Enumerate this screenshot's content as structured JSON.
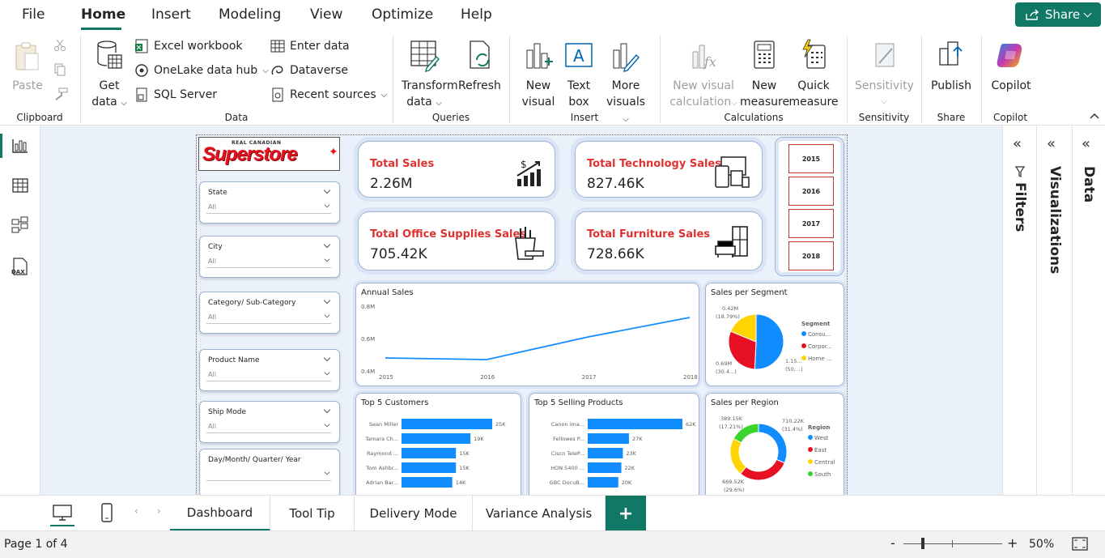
{
  "menu": {
    "items": [
      "File",
      "Home",
      "Insert",
      "Modeling",
      "View",
      "Optimize",
      "Help"
    ],
    "share_label": "Share"
  },
  "ribbon": {
    "clipboard": {
      "paste": "Paste",
      "group": "Clipboard"
    },
    "data": {
      "get_data_1": "Get",
      "get_data_2": "data",
      "excel": "Excel workbook",
      "onelake": "OneLake data hub",
      "sql": "SQL Server",
      "enter": "Enter data",
      "dataverse": "Dataverse",
      "recent": "Recent sources",
      "group": "Data"
    },
    "queries": {
      "transform_1": "Transform",
      "transform_2": "data",
      "refresh": "Refresh",
      "group": "Queries"
    },
    "insert": {
      "new_visual_1": "New",
      "new_visual_2": "visual",
      "text_box_1": "Text",
      "text_box_2": "box",
      "more_visuals_1": "More",
      "more_visuals_2": "visuals",
      "group": "Insert"
    },
    "calculations": {
      "new_visual_calc_1": "New visual",
      "new_visual_calc_2": "calculation",
      "new_measure_1": "New",
      "new_measure_2": "measure",
      "quick_measure_1": "Quick",
      "quick_measure_2": "measure",
      "group": "Calculations"
    },
    "sensitivity": {
      "label": "Sensitivity",
      "group": "Sensitivity"
    },
    "share": {
      "publish": "Publish",
      "group": "Share"
    },
    "copilot": {
      "label": "Copilot",
      "group": "Copilot"
    }
  },
  "panes": {
    "filters": "Filters",
    "visualizations": "Visualizations",
    "data": "Data"
  },
  "report": {
    "logo_top": "REAL CANADIAN",
    "logo": "Superstore",
    "slicers": [
      {
        "label": "State",
        "value": "All"
      },
      {
        "label": "City",
        "value": "All"
      },
      {
        "label": "Category/ Sub-Category",
        "value": "All"
      },
      {
        "label": "Product Name",
        "value": "All"
      },
      {
        "label": "Ship Mode",
        "value": "All"
      },
      {
        "label": "Day/Month/ Quarter/ Year",
        "value": ""
      }
    ],
    "kpis": [
      {
        "title": "Total Sales",
        "value": "2.26M"
      },
      {
        "title": "Total Technology Sales",
        "value": "827.46K"
      },
      {
        "title": "Total Office Supplies Sales",
        "value": "705.42K"
      },
      {
        "title": "Total Furniture Sales",
        "value": "728.66K"
      }
    ],
    "years": [
      "2015",
      "2016",
      "2017",
      "2018"
    ],
    "annual_title": "Annual Sales",
    "segment_title": "Sales per Segment",
    "segment_legend_title": "Segment",
    "segment_labels": [
      "0.42M",
      "(18.79%)",
      "0.69M",
      "(30.4...)",
      "1.15...",
      "(50,...)"
    ],
    "customers_title": "Top 5 Customers",
    "products_title": "Top 5 Selling Products",
    "region_title": "Sales per Region",
    "region_legend_title": "Region",
    "region_labels": [
      "389.15K",
      "(17.21%)",
      "710.22K",
      "(31.4%)",
      "669.52K",
      "(29.6%)"
    ]
  },
  "chart_data": [
    {
      "type": "line",
      "title": "Annual Sales",
      "x": [
        "2015",
        "2016",
        "2017",
        "2018"
      ],
      "values": [
        0.48,
        0.47,
        0.61,
        0.73
      ],
      "ytick_labels": [
        "0.8M",
        "0.6M",
        "0.4M"
      ],
      "ylim": [
        0.4,
        0.8
      ],
      "color": "#118dff"
    },
    {
      "type": "pie",
      "title": "Sales per Segment",
      "categories": [
        "Consu...",
        "Corpor...",
        "Home ..."
      ],
      "values": [
        50.8,
        30.4,
        18.79
      ],
      "colors": [
        "#118dff",
        "#e81123",
        "#ffd400"
      ]
    },
    {
      "type": "bar",
      "title": "Top 5 Customers",
      "categories": [
        "Sean Miller",
        "Tamara Ch...",
        "Raymond ...",
        "Tom Ashbr...",
        "Adrian Bar..."
      ],
      "values": [
        25,
        19,
        15,
        15,
        14
      ],
      "value_labels": [
        "25K",
        "19K",
        "15K",
        "15K",
        "14K"
      ],
      "color": "#118dff"
    },
    {
      "type": "bar",
      "title": "Top 5 Selling Products",
      "categories": [
        "Canon ima...",
        "Fellowes P...",
        "Cisco TeleP...",
        "HON 5400 ...",
        "GBC DocuB..."
      ],
      "values": [
        62,
        27,
        23,
        22,
        20
      ],
      "value_labels": [
        "62K",
        "27K",
        "23K",
        "22K",
        "20K"
      ],
      "color": "#118dff"
    },
    {
      "type": "pie",
      "title": "Sales per Region",
      "categories": [
        "West",
        "East",
        "Central",
        "South"
      ],
      "values": [
        31.4,
        29.6,
        21.79,
        17.21
      ],
      "colors": [
        "#118dff",
        "#e81123",
        "#ffd400",
        "#3bd42c"
      ]
    }
  ],
  "tabs": [
    "Dashboard",
    "Tool Tip",
    "Delivery Mode",
    "Variance Analysis"
  ],
  "add_page": "+",
  "status": {
    "page": "Page 1 of 4",
    "zoom": "50%",
    "minus": "-",
    "plus": "+"
  }
}
